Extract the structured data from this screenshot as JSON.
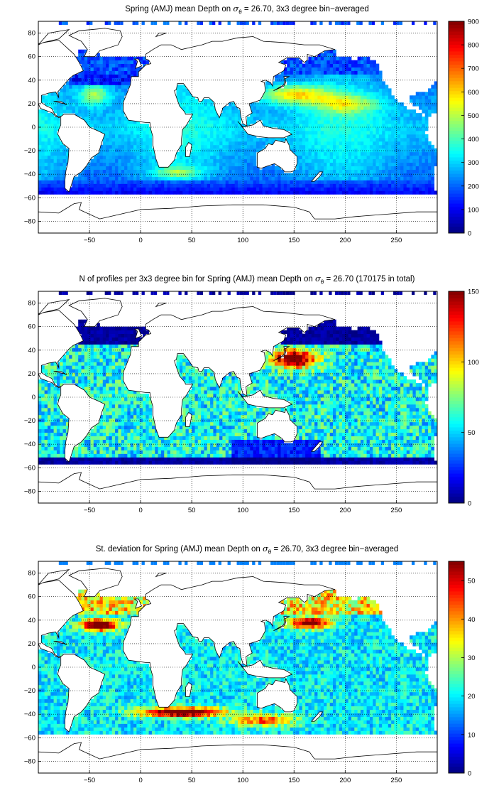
{
  "panels": [
    {
      "title_pre": "Spring (AMJ) mean Depth on ",
      "sigma": "σ",
      "sigma_sub": "θ",
      "title_post": " = 26.70, 3x3 degree bin−averaged",
      "colorbar_ticks": [
        "0",
        "100",
        "200",
        "300",
        "400",
        "500",
        "600",
        "700",
        "800",
        "900"
      ],
      "colorbar_range": [
        0,
        900
      ],
      "field": "depth"
    },
    {
      "title_pre": "N of profiles per 3x3 degree bin for Spring (AMJ) mean Depth on ",
      "sigma": "σ",
      "sigma_sub": "θ",
      "title_post": " = 26.70 (170175 in total)",
      "colorbar_ticks": [
        "0",
        "50",
        "100",
        "150"
      ],
      "colorbar_range": [
        0,
        150
      ],
      "field": "count"
    },
    {
      "title_pre": "St. deviation for Spring (AMJ) mean Depth on ",
      "sigma": "σ",
      "sigma_sub": "θ",
      "title_post": " = 26.70, 3x3 degree bin−averaged",
      "colorbar_ticks": [
        "0",
        "10",
        "20",
        "30",
        "40",
        "50"
      ],
      "colorbar_range": [
        0,
        55
      ],
      "field": "std"
    }
  ],
  "axes": {
    "x_ticks": [
      "−50",
      "0",
      "50",
      "100",
      "150",
      "200",
      "250"
    ],
    "x_values": [
      -50,
      0,
      50,
      100,
      150,
      200,
      250
    ],
    "y_ticks": [
      "80",
      "60",
      "40",
      "20",
      "0",
      "−20",
      "−40",
      "−60",
      "−80"
    ],
    "y_values": [
      80,
      60,
      40,
      20,
      0,
      -20,
      -40,
      -60,
      -80
    ],
    "xlim": [
      -100,
      290
    ],
    "ylim": [
      -90,
      90
    ],
    "grid": "dotted"
  },
  "colormap": "jet",
  "colors": {
    "land": "#ffffff",
    "coast": "#000000",
    "frame": "#000000"
  }
}
